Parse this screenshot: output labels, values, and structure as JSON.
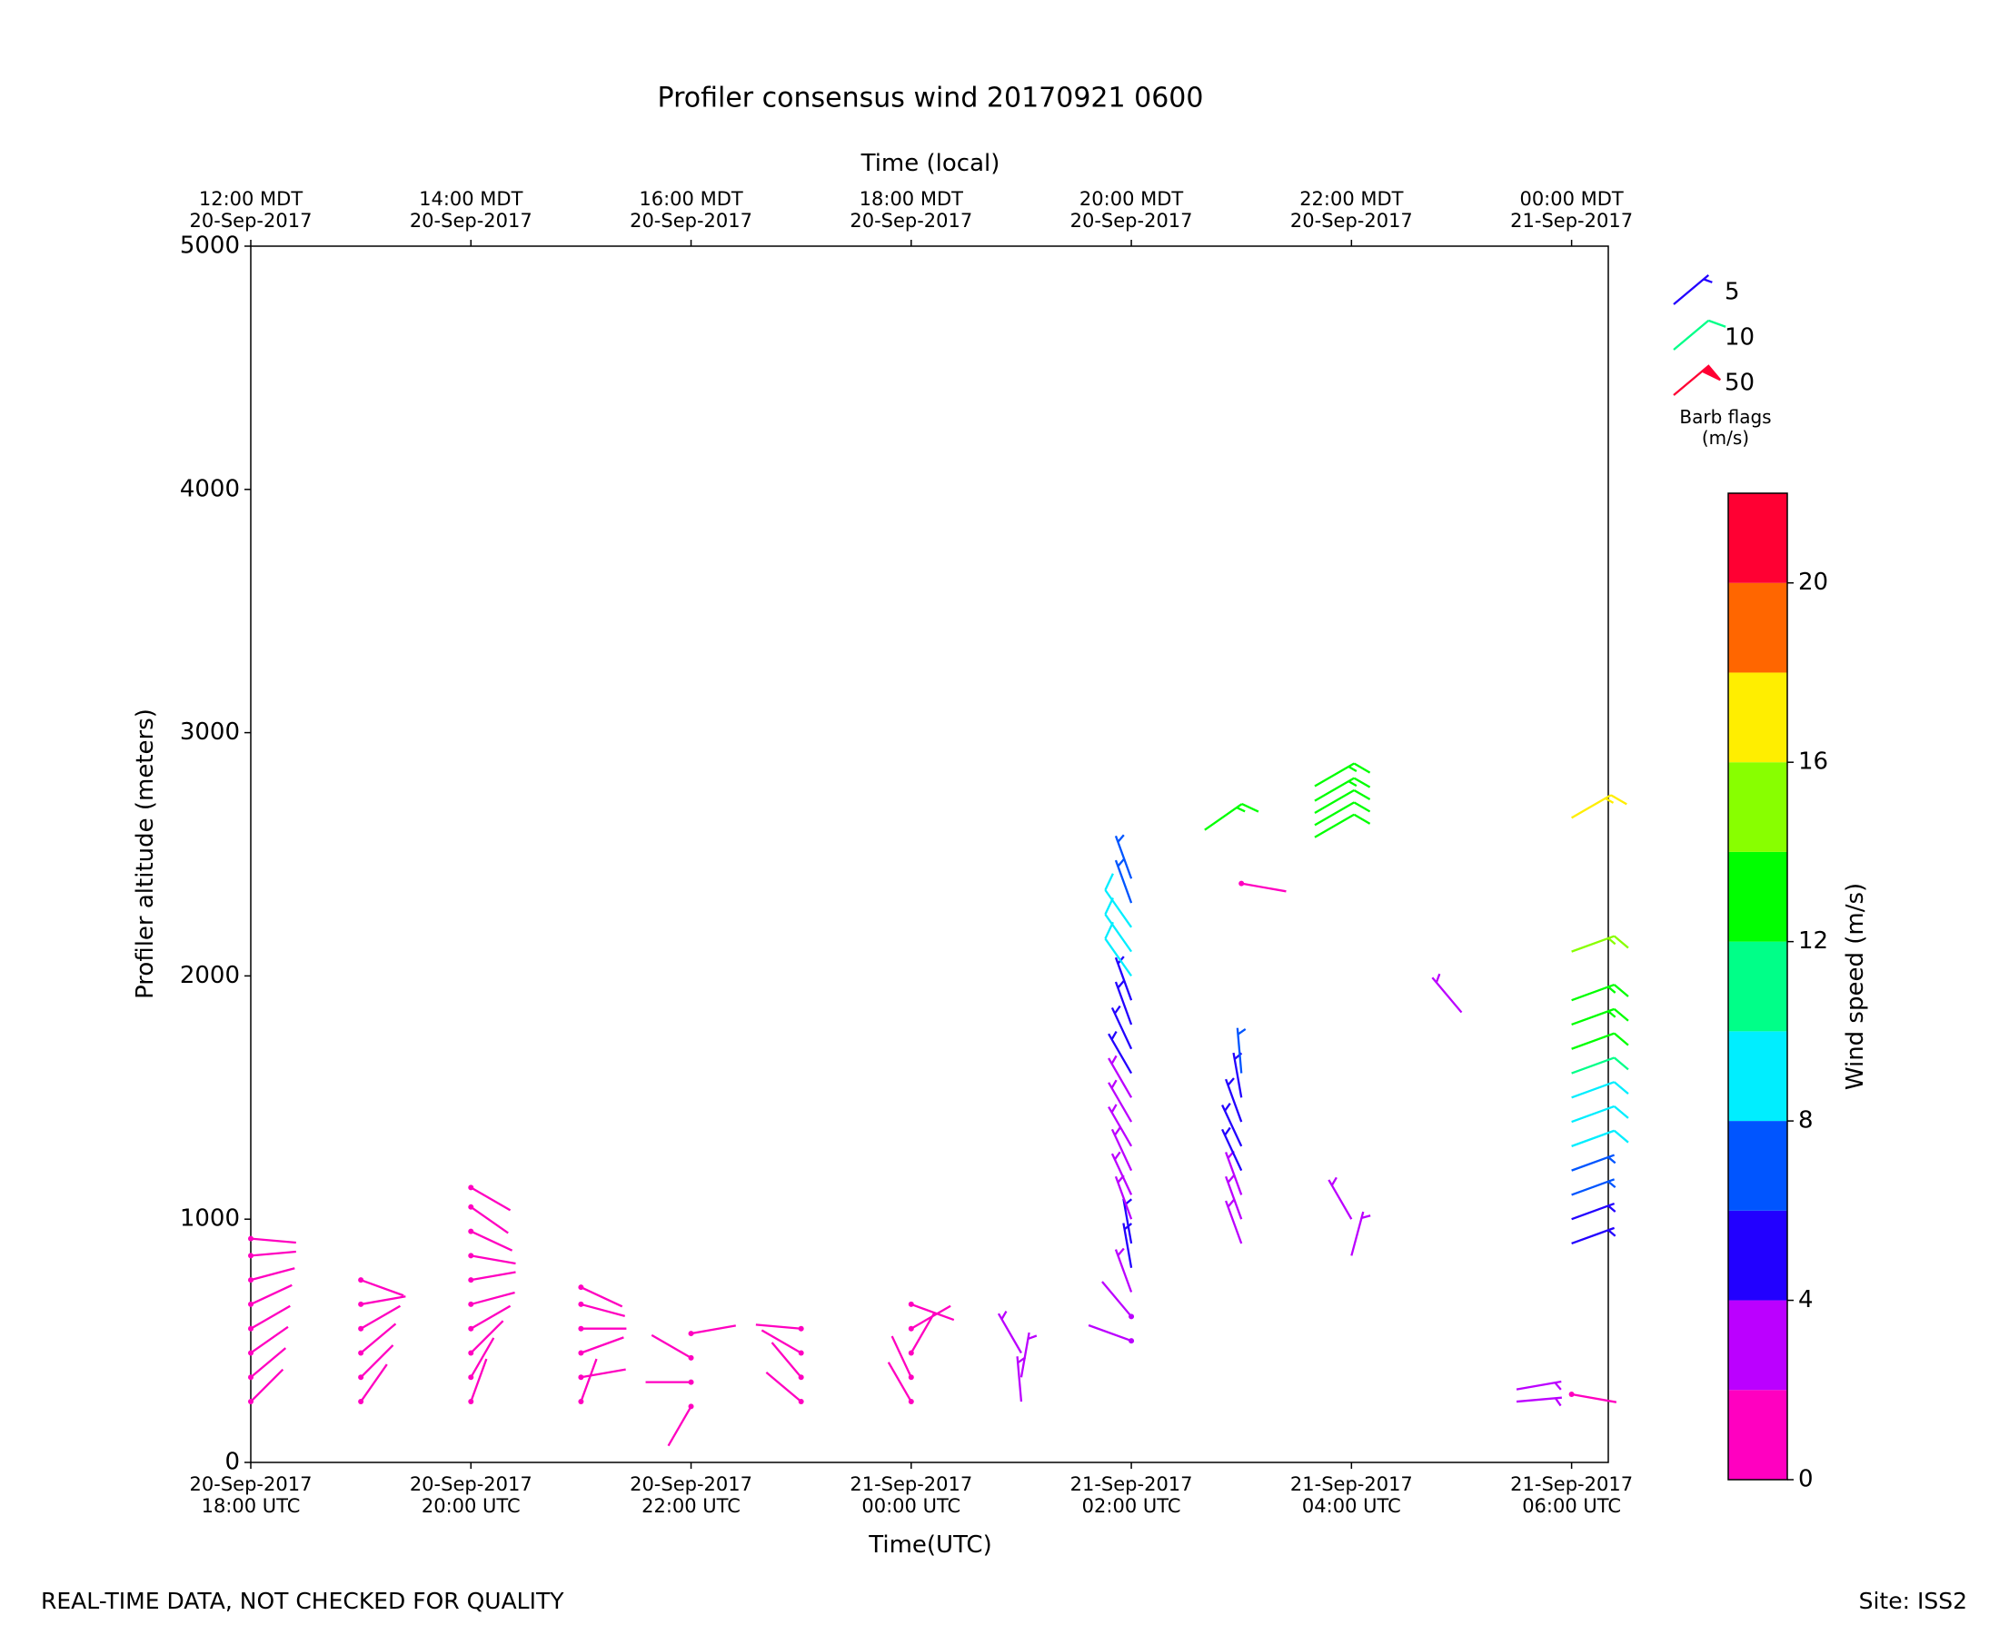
{
  "chart_data": {
    "type": "barbs",
    "title": "Profiler consensus wind 20170921 0600",
    "x_label": "Time(UTC)",
    "top_x_label": "Time (local)",
    "y_label": "Profiler altitude (meters)",
    "xlim": [
      "2017-09-20 18:00",
      "2017-09-21 06:20"
    ],
    "ylim": [
      0,
      5000
    ],
    "yticks": [
      0,
      1000,
      2000,
      3000,
      4000,
      5000
    ],
    "xticks": [
      {
        "value": "2017-09-20 18:00",
        "label": "20-Sep-2017\n18:00 UTC"
      },
      {
        "value": "2017-09-20 20:00",
        "label": "20-Sep-2017\n20:00 UTC"
      },
      {
        "value": "2017-09-20 22:00",
        "label": "20-Sep-2017\n22:00 UTC"
      },
      {
        "value": "2017-09-21 00:00",
        "label": "21-Sep-2017\n00:00 UTC"
      },
      {
        "value": "2017-09-21 02:00",
        "label": "21-Sep-2017\n02:00 UTC"
      },
      {
        "value": "2017-09-21 04:00",
        "label": "21-Sep-2017\n04:00 UTC"
      },
      {
        "value": "2017-09-21 06:00",
        "label": "21-Sep-2017\n06:00 UTC"
      }
    ],
    "top_xticks": [
      {
        "value": "2017-09-20 18:00",
        "label": "12:00 MDT\n20-Sep-2017"
      },
      {
        "value": "2017-09-20 20:00",
        "label": "14:00 MDT\n20-Sep-2017"
      },
      {
        "value": "2017-09-20 22:00",
        "label": "16:00 MDT\n20-Sep-2017"
      },
      {
        "value": "2017-09-21 00:00",
        "label": "18:00 MDT\n20-Sep-2017"
      },
      {
        "value": "2017-09-21 02:00",
        "label": "20:00 MDT\n20-Sep-2017"
      },
      {
        "value": "2017-09-21 04:00",
        "label": "22:00 MDT\n20-Sep-2017"
      },
      {
        "value": "2017-09-21 06:00",
        "label": "00:00 MDT\n21-Sep-2017"
      }
    ],
    "profiles": [
      {
        "time": "2017-09-20 18:00",
        "altitudes": [
          250,
          350,
          450,
          550,
          650,
          750,
          850,
          920
        ],
        "speeds": [
          1,
          1,
          1,
          1,
          1,
          1,
          1,
          1
        ],
        "directions": [
          45,
          50,
          55,
          60,
          65,
          75,
          85,
          95
        ]
      },
      {
        "time": "2017-09-20 19:00",
        "altitudes": [
          250,
          350,
          450,
          550,
          650,
          750
        ],
        "speeds": [
          1,
          1,
          1,
          1,
          1,
          1
        ],
        "directions": [
          35,
          45,
          50,
          60,
          80,
          110
        ]
      },
      {
        "time": "2017-09-20 20:00",
        "altitudes": [
          250,
          350,
          450,
          550,
          650,
          750,
          850,
          950,
          1050,
          1130
        ],
        "speeds": [
          1,
          1,
          1,
          1,
          1,
          1,
          1,
          1,
          1,
          1
        ],
        "directions": [
          20,
          30,
          45,
          60,
          75,
          80,
          100,
          115,
          125,
          120
        ]
      },
      {
        "time": "2017-09-20 21:00",
        "altitudes": [
          250,
          350,
          450,
          550,
          650,
          720
        ],
        "speeds": [
          1,
          1,
          1,
          1,
          1,
          1
        ],
        "directions": [
          20,
          80,
          70,
          90,
          105,
          115
        ]
      },
      {
        "time": "2017-09-20 22:00",
        "altitudes": [
          230,
          330,
          430,
          530
        ],
        "speeds": [
          1,
          1,
          1,
          1
        ],
        "directions": [
          210,
          270,
          300,
          80
        ]
      },
      {
        "time": "2017-09-20 23:00",
        "altitudes": [
          250,
          350,
          450,
          550
        ],
        "speeds": [
          1,
          1,
          1,
          1
        ],
        "directions": [
          310,
          320,
          300,
          275
        ]
      },
      {
        "time": "2017-09-21 00:00",
        "altitudes": [
          250,
          350,
          450,
          550,
          650
        ],
        "speeds": [
          1,
          1,
          1,
          1,
          1
        ],
        "directions": [
          330,
          335,
          30,
          60,
          110
        ]
      },
      {
        "time": "2017-09-21 01:00",
        "altitudes": [
          250,
          350,
          450
        ],
        "speeds": [
          3,
          3,
          3
        ],
        "directions": [
          355,
          10,
          330
        ]
      },
      {
        "time": "2017-09-21 02:00",
        "altitudes": [
          500,
          600,
          700,
          800,
          900,
          1000,
          1100,
          1200,
          1300,
          1400,
          1500,
          1600,
          1700,
          1800,
          1900,
          2000,
          2100,
          2200,
          2300,
          2400
        ],
        "speeds": [
          2,
          2,
          3,
          5,
          5,
          3,
          3,
          3,
          3,
          3,
          3,
          5,
          5,
          5,
          5,
          9,
          9,
          9,
          7,
          7
        ],
        "directions": [
          290,
          320,
          340,
          350,
          350,
          340,
          335,
          335,
          330,
          330,
          330,
          330,
          335,
          340,
          340,
          325,
          325,
          325,
          340,
          340
        ]
      },
      {
        "time": "2017-09-21 02:40",
        "altitudes": [
          2600
        ],
        "speeds": [
          13
        ],
        "directions": [
          55
        ]
      },
      {
        "time": "2017-09-21 03:00",
        "altitudes": [
          900,
          1000,
          1100,
          1200,
          1300,
          1400,
          1500,
          1600,
          2380
        ],
        "speeds": [
          3,
          3,
          3,
          5,
          5,
          5,
          5,
          7,
          1
        ],
        "directions": [
          340,
          340,
          340,
          335,
          335,
          340,
          350,
          355,
          100
        ]
      },
      {
        "time": "2017-09-21 03:40",
        "altitudes": [
          2570,
          2620,
          2670,
          2720,
          2780
        ],
        "speeds": [
          12,
          12,
          12,
          13,
          13
        ],
        "directions": [
          60,
          60,
          60,
          60,
          60
        ]
      },
      {
        "time": "2017-09-21 04:00",
        "altitudes": [
          850,
          1000
        ],
        "speeds": [
          3,
          3
        ],
        "directions": [
          15,
          330
        ]
      },
      {
        "time": "2017-09-21 05:00",
        "altitudes": [
          1850
        ],
        "speeds": [
          3
        ],
        "directions": [
          320
        ]
      },
      {
        "time": "2017-09-21 05:30",
        "altitudes": [
          250,
          300
        ],
        "speeds": [
          3,
          3
        ],
        "directions": [
          85,
          80
        ]
      },
      {
        "time": "2017-09-21 06:00",
        "altitudes": [
          280,
          900,
          1000,
          1100,
          1200,
          1300,
          1400,
          1500,
          1600,
          1700,
          1800,
          1900,
          2100,
          2650
        ],
        "speeds": [
          1,
          5,
          5,
          6,
          7,
          9,
          9,
          9,
          11,
          12,
          13,
          13,
          15,
          17
        ],
        "directions": [
          100,
          70,
          70,
          70,
          70,
          70,
          70,
          70,
          70,
          70,
          70,
          70,
          70,
          60
        ]
      }
    ],
    "barb_legend": {
      "title": "Barb flags\n(m/s)",
      "entries": [
        {
          "value": 5,
          "color": "#2200ff"
        },
        {
          "value": 10,
          "color": "#00ff88"
        },
        {
          "value": 50,
          "color": "#ff0033"
        }
      ]
    },
    "colorbar": {
      "label": "Wind speed (m/s)",
      "boundaries": [
        0,
        2,
        4,
        6,
        8,
        10,
        12,
        14,
        16,
        18,
        20,
        22
      ],
      "colors": [
        "#ff00c0",
        "#bb00ff",
        "#2200ff",
        "#0055ff",
        "#00eeff",
        "#00ff88",
        "#00ff00",
        "#88ff00",
        "#ffee00",
        "#ff6600",
        "#ff0033"
      ],
      "ticks": [
        0,
        4,
        8,
        12,
        16,
        20
      ]
    },
    "footer_left": "REAL-TIME DATA, NOT CHECKED FOR QUALITY",
    "footer_right": "Site: ISS2"
  }
}
